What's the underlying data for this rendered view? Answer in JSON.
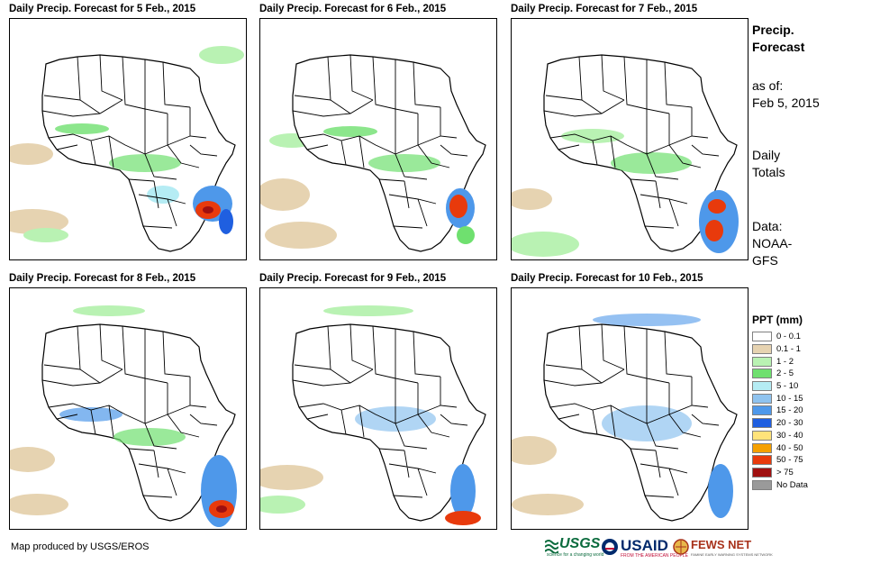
{
  "panels": [
    {
      "title": "Daily Precip. Forecast for 5 Feb., 2015"
    },
    {
      "title": "Daily Precip. Forecast for 6 Feb., 2015"
    },
    {
      "title": "Daily Precip. Forecast for 7 Feb., 2015"
    },
    {
      "title": "Daily Precip. Forecast for 8 Feb., 2015"
    },
    {
      "title": "Daily Precip. Forecast for 9 Feb., 2015"
    },
    {
      "title": "Daily Precip. Forecast for 10 Feb., 2015"
    }
  ],
  "sidebar": {
    "title_line1": "Precip.",
    "title_line2": "Forecast",
    "asof_label": "as of:",
    "asof_date": "Feb 5, 2015",
    "totals_line1": "Daily",
    "totals_line2": "Totals",
    "data_line1": "Data:",
    "data_line2": "NOAA-",
    "data_line3": "GFS"
  },
  "legend": {
    "title": "PPT (mm)",
    "items": [
      {
        "label": "0 - 0.1",
        "color": "#ffffff"
      },
      {
        "label": "0.1 - 1",
        "color": "#e6d3b1"
      },
      {
        "label": "1 - 2",
        "color": "#b9f2b3"
      },
      {
        "label": "2 - 5",
        "color": "#6fe06f"
      },
      {
        "label": "5 - 10",
        "color": "#b5ecf4"
      },
      {
        "label": "10 - 15",
        "color": "#8fc3ef"
      },
      {
        "label": "15 - 20",
        "color": "#4e98ea"
      },
      {
        "label": "20 - 30",
        "color": "#1f5fe0"
      },
      {
        "label": "30 - 40",
        "color": "#ffe37a"
      },
      {
        "label": "40 - 50",
        "color": "#f5a000"
      },
      {
        "label": "50 - 75",
        "color": "#e83a0c"
      },
      {
        "label": "> 75",
        "color": "#a01010"
      },
      {
        "label": "No Data",
        "color": "#9a9a9a"
      }
    ]
  },
  "footer": {
    "credit": "Map produced by USGS/EROS"
  },
  "logos": {
    "usgs": "USGS",
    "usgs_tagline": "science for a changing world",
    "usaid": "USAID",
    "usaid_tagline": "FROM THE AMERICAN PEOPLE",
    "fews": "FEWS NET",
    "fews_tagline": "FAMINE EARLY WARNING SYSTEMS NETWORK"
  }
}
